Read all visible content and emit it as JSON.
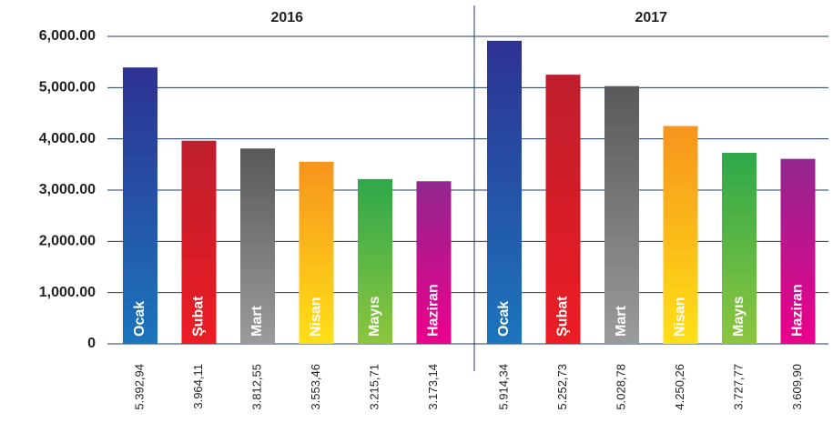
{
  "chart_data": {
    "type": "bar",
    "categories": [
      "Ocak",
      "Şubat",
      "Mart",
      "Nisan",
      "Mayıs",
      "Haziran"
    ],
    "colors": [
      [
        "#2e3192",
        "#1b75bc"
      ],
      [
        "#be1e2d",
        "#ed1c24"
      ],
      [
        "#58595b",
        "#9a9b9d"
      ],
      [
        "#f7941d",
        "#ffe017"
      ],
      [
        "#2ea84a",
        "#8dc63f"
      ],
      [
        "#92278f",
        "#ec008c"
      ]
    ],
    "groups": [
      {
        "name": "2016",
        "values": [
          5392.94,
          3964.11,
          3812.55,
          3553.46,
          3215.71,
          3173.14
        ],
        "value_labels": [
          "5.392,94",
          "3.964,11",
          "3.812,55",
          "3.553,46",
          "3.215,71",
          "3.173,14"
        ]
      },
      {
        "name": "2017",
        "values": [
          5914.34,
          5252.73,
          5028.78,
          4250.26,
          3727.77,
          3609.9
        ],
        "value_labels": [
          "5.914,34",
          "5.252,73",
          "5.028,78",
          "4.250,26",
          "3.727,77",
          "3.609,90"
        ]
      }
    ],
    "ylim": [
      0,
      6000
    ],
    "yticks": [
      0,
      {
        "value": 1000,
        "label": "1,000.00"
      },
      {
        "value": 2000,
        "label": "2,000.00"
      },
      {
        "value": 3000,
        "label": "3,000.00"
      },
      {
        "value": 4000,
        "label": "4,000.00"
      },
      {
        "value": 5000,
        "label": "5,000.00"
      },
      {
        "value": 6000,
        "label": "6,000.00"
      }
    ],
    "grid": true
  }
}
